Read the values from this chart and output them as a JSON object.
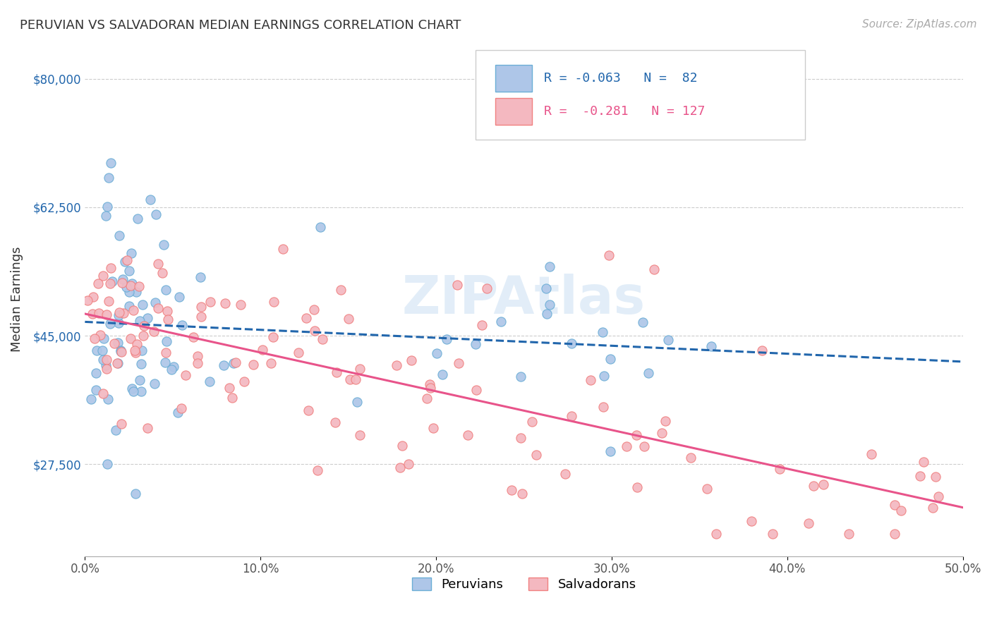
{
  "title": "PERUVIAN VS SALVADORAN MEDIAN EARNINGS CORRELATION CHART",
  "source": "Source: ZipAtlas.com",
  "ylabel": "Median Earnings",
  "yticks": [
    27500,
    45000,
    62500,
    80000
  ],
  "ytick_labels": [
    "$27,500",
    "$45,000",
    "$62,500",
    "$80,000"
  ],
  "xlim": [
    0.0,
    0.5
  ],
  "ylim": [
    15000,
    85000
  ],
  "peruvian_color": "#6baed6",
  "peruvian_color_fill": "#aec6e8",
  "salvadoran_color": "#f08080",
  "salvadoran_color_fill": "#f4b8c0",
  "peruvian_line_color": "#2166ac",
  "salvadoran_line_color": "#e8548a",
  "watermark": "ZIPAtlas",
  "peruvian_R": -0.063,
  "peruvian_N": 82,
  "salvadoran_R": -0.281,
  "salvadoran_N": 127,
  "background_color": "#ffffff",
  "grid_color": "#cccccc"
}
